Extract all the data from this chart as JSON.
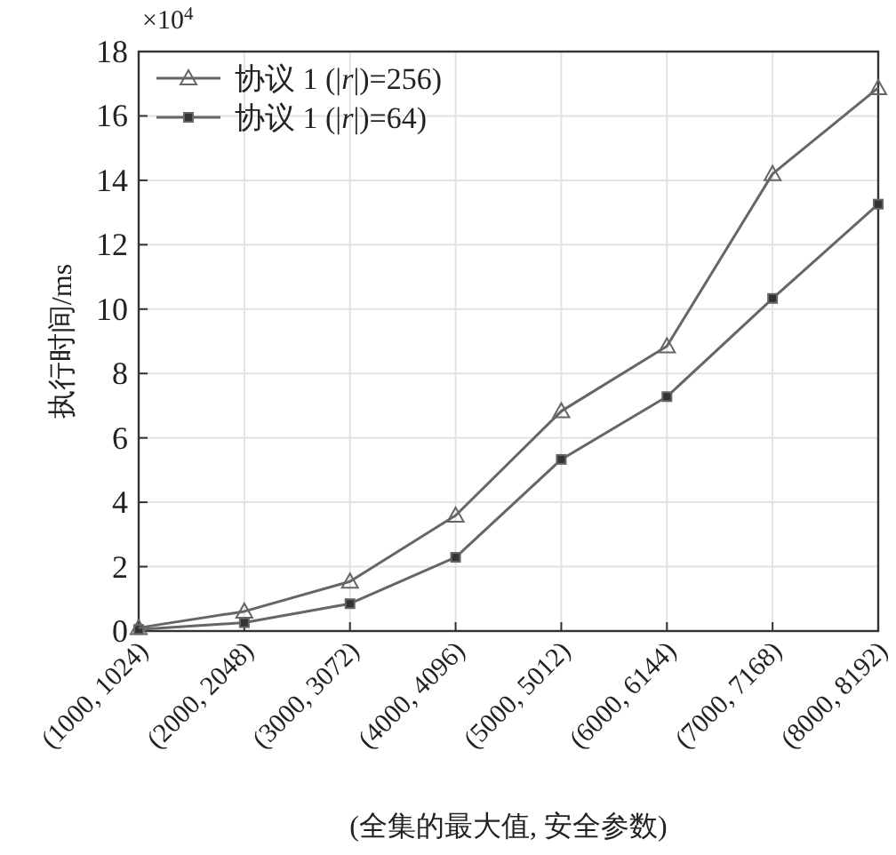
{
  "chart_data": {
    "type": "line",
    "xlabel": "(全集的最大值, 安全参数)",
    "ylabel": "执行时间/ms",
    "annotations": [
      "×10$^{4}$"
    ],
    "categories": [
      "(1000, 1024)",
      "(2000, 2048)",
      "(3000, 3072)",
      "(4000, 4096)",
      "(5000, 5012)",
      "(6000, 6144)",
      "(7000, 7168)",
      "(8000, 8192)"
    ],
    "series": [
      {
        "name": "协议 1 (|*r*|)=256)",
        "color": "#666666",
        "marker": "triangle",
        "values": [
          0.1,
          0.61,
          1.54,
          3.59,
          6.83,
          8.85,
          14.2,
          16.87
        ]
      },
      {
        "name": "协议 1 (|*r*|)=64)",
        "color": "#666666",
        "marker": "square",
        "values": [
          0.05,
          0.26,
          0.85,
          2.29,
          5.33,
          7.28,
          10.33,
          13.26
        ]
      }
    ],
    "ylim": [
      0,
      18
    ],
    "yticks": [
      0,
      2,
      4,
      6,
      8,
      10,
      12,
      14,
      16,
      18
    ],
    "grid": true,
    "legend": "top left"
  }
}
